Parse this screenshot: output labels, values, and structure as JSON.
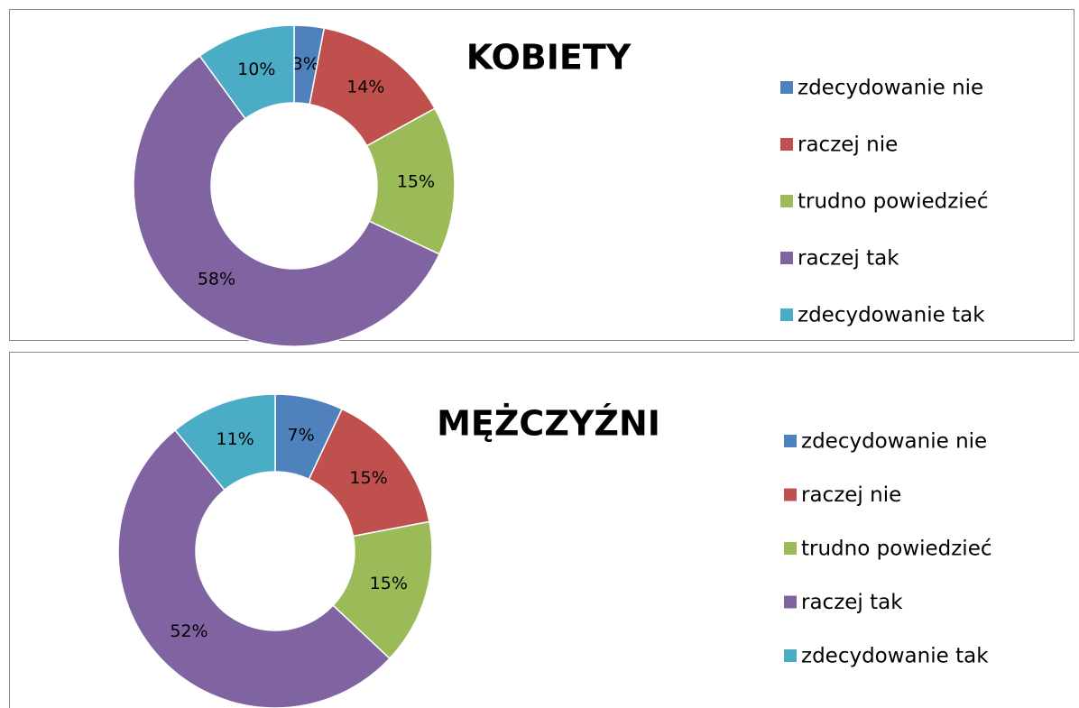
{
  "chart_data": [
    {
      "type": "donut",
      "title": "KOBIETY",
      "categories": [
        "zdecydowanie nie",
        "raczej nie",
        "trudno powiedzieć",
        "raczej tak",
        "zdecydowanie tak"
      ],
      "values": [
        3,
        14,
        15,
        58,
        10
      ],
      "value_labels": [
        "3%",
        "14%",
        "15%",
        "58%",
        "10%"
      ],
      "colors": [
        "#4f81bd",
        "#c0504d",
        "#9bbb59",
        "#8064a2",
        "#4bacc6"
      ],
      "legend": "right"
    },
    {
      "type": "donut",
      "title": "MĘŻCZYŹNI",
      "categories": [
        "zdecydowanie nie",
        "raczej nie",
        "trudno powiedzieć",
        "raczej tak",
        "zdecydowanie tak"
      ],
      "values": [
        7,
        15,
        15,
        52,
        11
      ],
      "value_labels": [
        "7%",
        "15%",
        "15%",
        "52%",
        "11%"
      ],
      "colors": [
        "#4f81bd",
        "#c0504d",
        "#9bbb59",
        "#8064a2",
        "#4bacc6"
      ],
      "legend": "right"
    }
  ]
}
